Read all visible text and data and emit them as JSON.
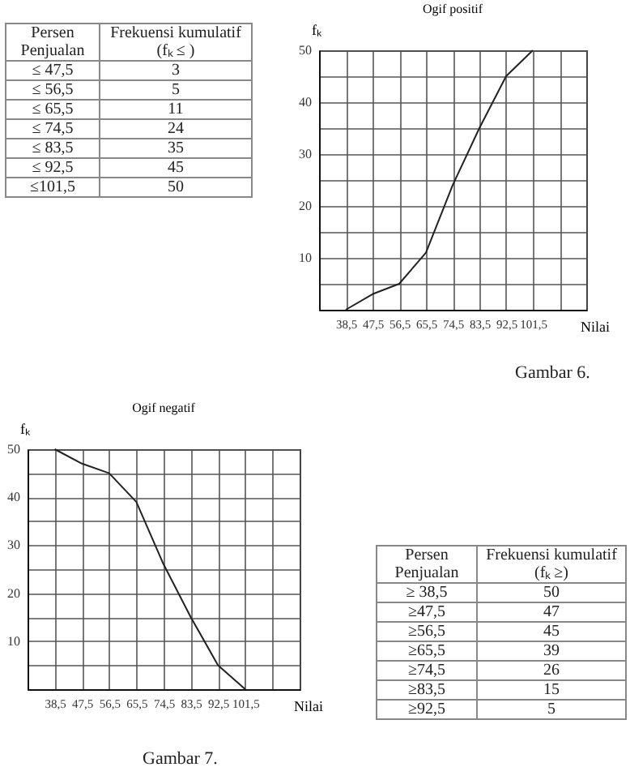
{
  "chart_data": [
    {
      "type": "other",
      "annotations": [
        "Persen Penjualan",
        "Frekuensi kumulatif (fₖ ≤ )",
        "≤ 47,5",
        "3",
        "≤ 56,5",
        "5",
        "≤ 65,5",
        "11",
        "≤ 74,5",
        "24",
        "≤  83,5",
        "35",
        "≤ 92,5",
        "45",
        "≤101,5",
        "50"
      ]
    },
    {
      "type": "line",
      "title": "Ogif positif",
      "xlabel": "Nilai",
      "ylabel": "fₖ",
      "grid": true,
      "x": [
        38.5,
        47.5,
        56.5,
        65.5,
        74.5,
        83.5,
        92.5,
        101.5
      ],
      "values": [
        0,
        3,
        5,
        11,
        24,
        35,
        45,
        50
      ],
      "xlim": [
        29.5,
        119.5
      ],
      "ylim": [
        0,
        50
      ],
      "xticks": [
        {
          "value": 38.5,
          "label": "38,5"
        },
        {
          "value": 47.5,
          "label": "47,5"
        },
        {
          "value": 56.5,
          "label": "56,5"
        },
        {
          "value": 65.5,
          "label": "65,5"
        },
        {
          "value": 74.5,
          "label": "74,5"
        },
        {
          "value": 83.5,
          "label": "83,5"
        },
        {
          "value": 92.5,
          "label": "92,5"
        },
        {
          "value": 101.5,
          "label": "101,5"
        },
        {
          "value": 110.5,
          "label": null
        }
      ],
      "yticks": [
        {
          "value": 5,
          "label": null
        },
        10,
        {
          "value": 15,
          "label": null
        },
        20,
        {
          "value": 25,
          "label": null
        },
        30,
        {
          "value": 35,
          "label": null
        },
        40,
        {
          "value": 45,
          "label": null
        },
        50
      ],
      "annotations": [
        "Gambar 6."
      ]
    },
    {
      "type": "line",
      "title": "Ogif negatif",
      "xlabel": "Nilai",
      "ylabel": "fₖ",
      "grid": true,
      "x": [
        38.5,
        47.5,
        56.5,
        65.5,
        74.5,
        83.5,
        92.5,
        101.5
      ],
      "values": [
        50,
        47,
        45,
        39,
        26,
        15,
        5,
        0
      ],
      "xlim": [
        29.5,
        119.5
      ],
      "ylim": [
        0,
        50
      ],
      "xticks": [
        {
          "value": 38.5,
          "label": "38,5"
        },
        {
          "value": 47.5,
          "label": "47,5"
        },
        {
          "value": 56.5,
          "label": "56,5"
        },
        {
          "value": 65.5,
          "label": "65,5"
        },
        {
          "value": 74.5,
          "label": "74,5"
        },
        {
          "value": 83.5,
          "label": "83,5"
        },
        {
          "value": 92.5,
          "label": "92,5"
        },
        {
          "value": 101.5,
          "label": "101,5"
        },
        {
          "value": 110.5,
          "label": null
        }
      ],
      "yticks": [
        {
          "value": 5,
          "label": null
        },
        10,
        {
          "value": 15,
          "label": null
        },
        20,
        {
          "value": 25,
          "label": null
        },
        30,
        {
          "value": 35,
          "label": null
        },
        40,
        {
          "value": 45,
          "label": null
        },
        50
      ],
      "annotations": [
        "Gambar 7."
      ]
    },
    {
      "type": "other",
      "annotations": [
        "Persen Penjualan",
        "Frekuensi kumulatif (fₖ ≥)",
        "≥ 38,5",
        "50",
        "≥47,5",
        "47",
        "≥56,5",
        "45",
        "≥65,5",
        "39",
        "≥74,5",
        "26",
        "≥83,5",
        "15",
        "≥92,5",
        "5"
      ]
    }
  ]
}
